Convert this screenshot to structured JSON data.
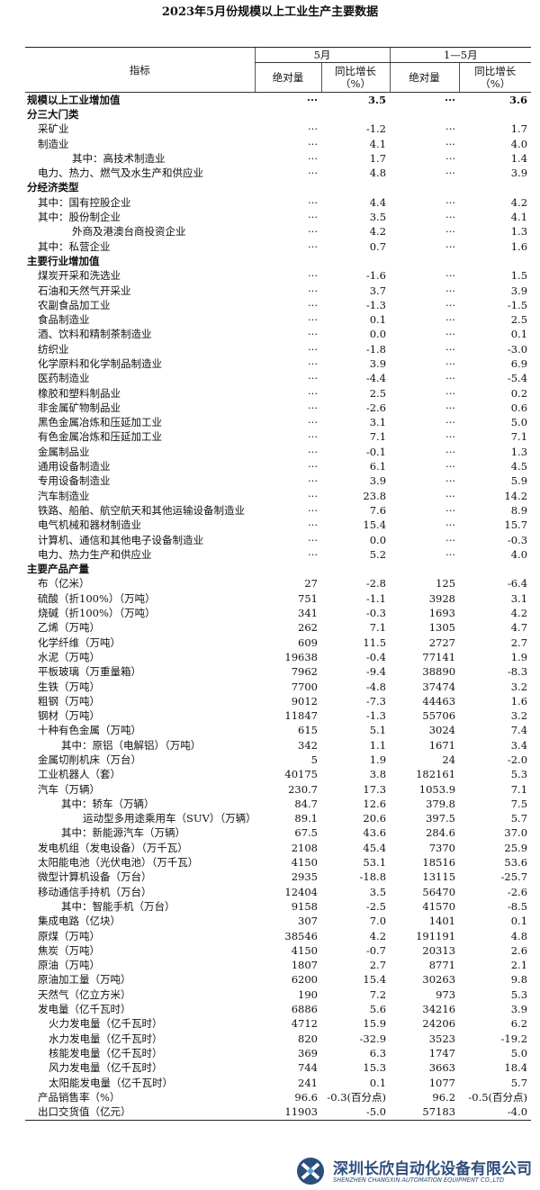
{
  "title": "2023年5月份规模以上工业生产主要数据",
  "header": {
    "indicator": "指标",
    "groups": [
      "5月",
      "1—5月"
    ],
    "subheaders": [
      [
        "绝对量"
      ],
      [
        "同比增长",
        "（%）"
      ],
      [
        "绝对量"
      ],
      [
        "同比增长",
        "（%）"
      ]
    ]
  },
  "rows": [
    [
      "规模以上工业增加值",
      "···",
      "3.5",
      "···",
      "3.6"
    ],
    [
      "分三大门类"
    ],
    [
      "采矿业",
      "···",
      "-1.2",
      "···",
      "1.7"
    ],
    [
      "制造业",
      "···",
      "4.1",
      "···",
      "4.0"
    ],
    [
      "其中：高技术制造业",
      "···",
      "1.7",
      "···",
      "1.4"
    ],
    [
      "电力、热力、燃气及水生产和供应业",
      "···",
      "4.8",
      "···",
      "3.9"
    ],
    [
      "分经济类型"
    ],
    [
      "其中：国有控股企业",
      "···",
      "4.4",
      "···",
      "4.2"
    ],
    [
      "其中：股份制企业",
      "···",
      "3.5",
      "···",
      "4.1"
    ],
    [
      "外商及港澳台商投资企业",
      "···",
      "4.2",
      "···",
      "1.3"
    ],
    [
      "其中：私营企业",
      "···",
      "0.7",
      "···",
      "1.6"
    ],
    [
      "主要行业增加值"
    ],
    [
      "煤炭开采和洗选业",
      "···",
      "-1.6",
      "···",
      "1.5"
    ],
    [
      "石油和天然气开采业",
      "···",
      "3.7",
      "···",
      "3.9"
    ],
    [
      "农副食品加工业",
      "···",
      "-1.3",
      "···",
      "-1.5"
    ],
    [
      "食品制造业",
      "···",
      "0.1",
      "···",
      "2.5"
    ],
    [
      "酒、饮料和精制茶制造业",
      "···",
      "0.0",
      "···",
      "0.1"
    ],
    [
      "纺织业",
      "···",
      "-1.8",
      "···",
      "-3.0"
    ],
    [
      "化学原料和化学制品制造业",
      "···",
      "3.9",
      "···",
      "6.9"
    ],
    [
      "医药制造业",
      "···",
      "-4.4",
      "···",
      "-5.4"
    ],
    [
      "橡胶和塑料制品业",
      "···",
      "2.5",
      "···",
      "0.2"
    ],
    [
      "非金属矿物制品业",
      "···",
      "-2.6",
      "···",
      "0.6"
    ],
    [
      "黑色金属冶炼和压延加工业",
      "···",
      "3.1",
      "···",
      "5.0"
    ],
    [
      "有色金属冶炼和压延加工业",
      "···",
      "7.1",
      "···",
      "7.1"
    ],
    [
      "金属制品业",
      "···",
      "-0.1",
      "···",
      "1.3"
    ],
    [
      "通用设备制造业",
      "···",
      "6.1",
      "···",
      "4.5"
    ],
    [
      "专用设备制造业",
      "···",
      "3.9",
      "···",
      "5.9"
    ],
    [
      "汽车制造业",
      "···",
      "23.8",
      "···",
      "14.2"
    ],
    [
      "铁路、船舶、航空航天和其他运输设备制造业",
      "···",
      "7.6",
      "···",
      "8.9"
    ],
    [
      "电气机械和器材制造业",
      "···",
      "15.4",
      "···",
      "15.7"
    ],
    [
      "计算机、通信和其他电子设备制造业",
      "···",
      "0.0",
      "···",
      "-0.3"
    ],
    [
      "电力、热力生产和供应业",
      "···",
      "5.2",
      "···",
      "4.0"
    ],
    [
      "主要产品产量"
    ],
    [
      "布（亿米）",
      "27",
      "-2.8",
      "125",
      "-6.4"
    ],
    [
      "硫酸（折100%）（万吨）",
      "751",
      "-1.1",
      "3928",
      "3.1"
    ],
    [
      "烧碱（折100%）（万吨）",
      "341",
      "-0.3",
      "1693",
      "4.2"
    ],
    [
      "乙烯（万吨）",
      "262",
      "7.1",
      "1305",
      "4.7"
    ],
    [
      "化学纤维（万吨）",
      "609",
      "11.5",
      "2727",
      "2.7"
    ],
    [
      "水泥（万吨）",
      "19638",
      "-0.4",
      "77141",
      "1.9"
    ],
    [
      "平板玻璃（万重量箱）",
      "7962",
      "-9.4",
      "38890",
      "-8.3"
    ],
    [
      "生铁（万吨）",
      "7700",
      "-4.8",
      "37474",
      "3.2"
    ],
    [
      "粗钢（万吨）",
      "9012",
      "-7.3",
      "44463",
      "1.6"
    ],
    [
      "钢材（万吨）",
      "11847",
      "-1.3",
      "55706",
      "3.2"
    ],
    [
      "十种有色金属（万吨）",
      "615",
      "5.1",
      "3024",
      "7.4"
    ],
    [
      "其中：原铝（电解铝）（万吨）",
      "342",
      "1.1",
      "1671",
      "3.4"
    ],
    [
      "金属切削机床（万台）",
      "5",
      "1.9",
      "24",
      "-2.0"
    ],
    [
      "工业机器人（套）",
      "40175",
      "3.8",
      "182161",
      "5.3"
    ],
    [
      "汽车（万辆）",
      "230.7",
      "17.3",
      "1053.9",
      "7.1"
    ],
    [
      "其中：轿车（万辆）",
      "84.7",
      "12.6",
      "379.8",
      "7.5"
    ],
    [
      "运动型多用途乘用车（SUV）（万辆）",
      "89.1",
      "20.6",
      "397.5",
      "5.7"
    ],
    [
      "其中：新能源汽车（万辆）",
      "67.5",
      "43.6",
      "284.6",
      "37.0"
    ],
    [
      "发电机组（发电设备）（万千瓦）",
      "2108",
      "45.4",
      "7370",
      "25.9"
    ],
    [
      "太阳能电池（光伏电池）（万千瓦）",
      "4150",
      "53.1",
      "18516",
      "53.6"
    ],
    [
      "微型计算机设备（万台）",
      "2935",
      "-18.8",
      "13115",
      "-25.7"
    ],
    [
      "移动通信手持机（万台）",
      "12404",
      "3.5",
      "56470",
      "-2.6"
    ],
    [
      "其中：智能手机（万台）",
      "9158",
      "-2.5",
      "41570",
      "-8.5"
    ],
    [
      "集成电路（亿块）",
      "307",
      "7.0",
      "1401",
      "0.1"
    ],
    [
      "原煤（万吨）",
      "38546",
      "4.2",
      "191191",
      "4.8"
    ],
    [
      "焦炭（万吨）",
      "4150",
      "-0.7",
      "20313",
      "2.6"
    ],
    [
      "原油（万吨）",
      "1807",
      "2.7",
      "8771",
      "2.1"
    ],
    [
      "原油加工量（万吨）",
      "6200",
      "15.4",
      "30263",
      "9.8"
    ],
    [
      "天然气（亿立方米）",
      "190",
      "7.2",
      "973",
      "5.3"
    ],
    [
      "发电量（亿千瓦时）",
      "6886",
      "5.6",
      "34216",
      "3.9"
    ],
    [
      "火力发电量（亿千瓦时）",
      "4712",
      "15.9",
      "24206",
      "6.2"
    ],
    [
      "水力发电量（亿千瓦时）",
      "820",
      "-32.9",
      "3523",
      "-19.2"
    ],
    [
      "核能发电量（亿千瓦时）",
      "369",
      "6.3",
      "1747",
      "5.0"
    ],
    [
      "风力发电量（亿千瓦时）",
      "744",
      "15.3",
      "3663",
      "18.4"
    ],
    [
      "太阳能发电量（亿千瓦时）",
      "241",
      "0.1",
      "1077",
      "5.7"
    ],
    [
      "产品销售率（%）",
      "96.6",
      "-0.3(百分点)",
      "96.2",
      "-0.5(百分点)"
    ],
    [
      "出口交货值（亿元）",
      "11903",
      "-5.0",
      "57183",
      "-4.0"
    ]
  ],
  "watermark": {
    "name": "深圳长欣自动化设备有限公司",
    "english": "SHENZHEN CHANGXIN AUTOMATION EQUIPMENT CO.,LTD"
  }
}
